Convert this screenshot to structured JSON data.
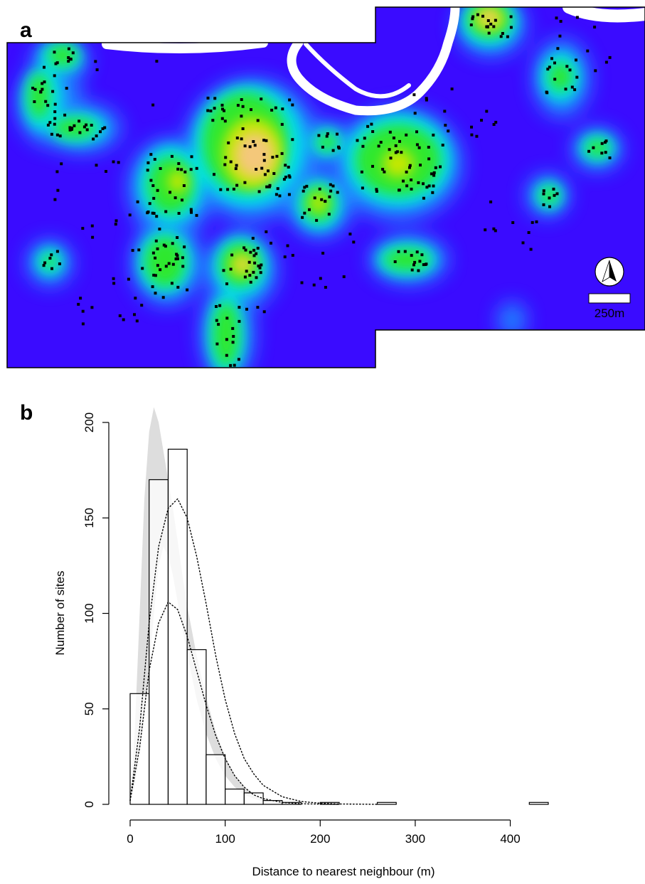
{
  "figure": {
    "panel_a_label": "a",
    "panel_b_label": "b",
    "north_arrow_icon": "north-arrow-icon",
    "scale_bar_label": "250m"
  },
  "colors": {
    "density_low": "#3a0bff",
    "density_mid_low": "#1e90ff",
    "density_mid": "#00e5e5",
    "density_mid_high": "#2ee82e",
    "density_high": "#c6e800",
    "density_peak": "#f4c87a",
    "river": "#ffffff",
    "site_point": "#000000",
    "histogram_fill": "#ffffff",
    "envelope_fill": "#dddddd",
    "curve": "#000000"
  },
  "chart_data": [
    {
      "panel": "a",
      "type": "heatmap",
      "title": "",
      "xlabel": "",
      "ylabel": "",
      "legend": "none",
      "description_items": [
        "site density surface",
        "site points",
        "river channel",
        "north arrow",
        "scale bar"
      ]
    },
    {
      "panel": "b",
      "type": "bar",
      "title": "",
      "xlabel": "Distance to nearest neighbour (m)",
      "ylabel": "Number of sites",
      "xlim": [
        0,
        440
      ],
      "ylim": [
        0,
        200
      ],
      "xticks": [
        0,
        100,
        200,
        300,
        400
      ],
      "yticks": [
        0,
        50,
        100,
        150,
        200
      ],
      "grid": false,
      "bin_width": 20,
      "bins": [
        {
          "start": 0,
          "end": 20,
          "count": 58
        },
        {
          "start": 20,
          "end": 40,
          "count": 170
        },
        {
          "start": 40,
          "end": 60,
          "count": 186
        },
        {
          "start": 60,
          "end": 80,
          "count": 81
        },
        {
          "start": 80,
          "end": 100,
          "count": 26
        },
        {
          "start": 100,
          "end": 120,
          "count": 8
        },
        {
          "start": 120,
          "end": 140,
          "count": 6
        },
        {
          "start": 140,
          "end": 160,
          "count": 2
        },
        {
          "start": 160,
          "end": 180,
          "count": 1
        },
        {
          "start": 200,
          "end": 220,
          "count": 1
        },
        {
          "start": 260,
          "end": 280,
          "count": 1
        },
        {
          "start": 420,
          "end": 440,
          "count": 1
        }
      ],
      "envelope": {
        "x": [
          0,
          5,
          10,
          15,
          20,
          25,
          30,
          35,
          40,
          45,
          50,
          55,
          60,
          70,
          80,
          90,
          100,
          110,
          120,
          130,
          140,
          150,
          160,
          170,
          180
        ],
        "upper": [
          0,
          40,
          100,
          160,
          195,
          208,
          200,
          185,
          170,
          155,
          138,
          120,
          104,
          78,
          56,
          38,
          25,
          15,
          9,
          5,
          3,
          1.5,
          1,
          0.5,
          0
        ],
        "lower": [
          0,
          10,
          25,
          45,
          70,
          100,
          125,
          135,
          130,
          120,
          106,
          92,
          79,
          55,
          37,
          24,
          15,
          9,
          5,
          3,
          1.5,
          1,
          0.5,
          0.2,
          0
        ]
      },
      "curves": [
        {
          "style": "dotted",
          "x": [
            0,
            10,
            20,
            30,
            40,
            50,
            60,
            70,
            80,
            90,
            100,
            110,
            120,
            130,
            140,
            160,
            180,
            200,
            220,
            240,
            260
          ],
          "y": [
            2,
            40,
            95,
            135,
            155,
            160,
            150,
            130,
            105,
            78,
            55,
            37,
            24,
            16,
            10,
            4,
            1.5,
            0.6,
            0.2,
            0.1,
            0
          ]
        },
        {
          "style": "dotted",
          "x": [
            0,
            10,
            20,
            30,
            40,
            50,
            60,
            70,
            80,
            90,
            100,
            110,
            120,
            130,
            140,
            160,
            180,
            200,
            220
          ],
          "y": [
            2,
            30,
            70,
            95,
            106,
            102,
            88,
            70,
            52,
            36,
            24,
            15,
            9,
            5,
            3,
            1,
            0.3,
            0.1,
            0
          ]
        }
      ]
    }
  ]
}
